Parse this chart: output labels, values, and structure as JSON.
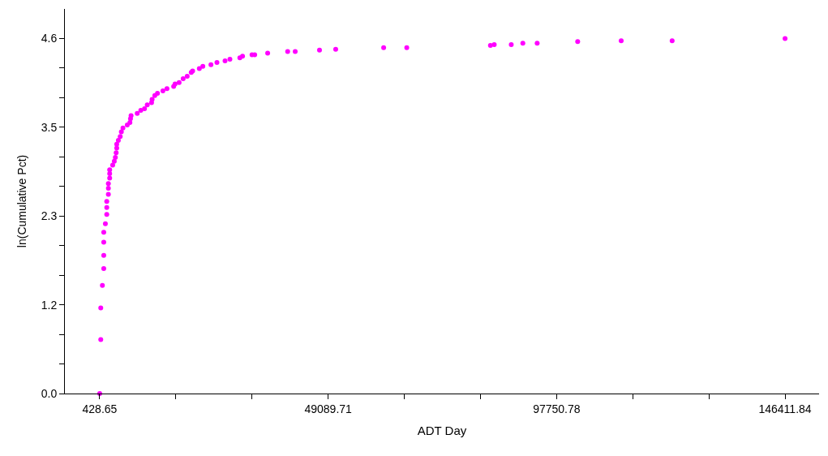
{
  "chart_data": {
    "type": "scatter",
    "xlabel": "ADT Day",
    "ylabel": "ln(Cumulative Pct)",
    "x": [
      428.65,
      653,
      653,
      998,
      1291,
      1291,
      1291,
      1291,
      1636,
      1930,
      1930,
      1930,
      2275,
      2275,
      2275,
      2551,
      2551,
      2551,
      3190,
      3535,
      3759,
      3932,
      4052,
      4052,
      4397,
      4794,
      5036,
      5381,
      6296,
      6865,
      6986,
      7107,
      8418,
      9178,
      9972,
      10558,
      11473,
      11593,
      12163,
      12732,
      13888,
      14751,
      16183,
      16477,
      17340,
      18203,
      19065,
      19928,
      20222,
      21654,
      22396,
      24122,
      25399,
      27125,
      28160,
      30283,
      30852,
      32871,
      33441,
      36202,
      40464,
      42069,
      47246,
      50697,
      60913,
      65831,
      83656,
      84467,
      88091,
      90558,
      93613,
      102240,
      111507,
      122360,
      146411.84
    ],
    "series": [
      {
        "color": "#ff00ff",
        "values": [
          0,
          0.7,
          1.11,
          1.4,
          1.62,
          1.79,
          1.96,
          2.09,
          2.2,
          2.32,
          2.41,
          2.49,
          2.58,
          2.66,
          2.72,
          2.79,
          2.85,
          2.9,
          2.96,
          3.01,
          3.06,
          3.12,
          3.18,
          3.23,
          3.28,
          3.33,
          3.39,
          3.44,
          3.48,
          3.51,
          3.56,
          3.6,
          3.63,
          3.67,
          3.69,
          3.74,
          3.77,
          3.81,
          3.86,
          3.89,
          3.92,
          3.95,
          3.98,
          4.01,
          4.03,
          4.08,
          4.11,
          4.16,
          4.18,
          4.21,
          4.24,
          4.26,
          4.29,
          4.31,
          4.33,
          4.35,
          4.37,
          4.39,
          4.39,
          4.41,
          4.43,
          4.43,
          4.45,
          4.46,
          4.48,
          4.48,
          4.51,
          4.52,
          4.52,
          4.54,
          4.54,
          4.56,
          4.57,
          4.57,
          4.6
        ]
      }
    ],
    "marker": "circle",
    "xlim": [
      -6991,
      153660
    ],
    "xticks": [
      428.65,
      {
        "value": 16649.0,
        "label": null
      },
      {
        "value": 32869.36,
        "label": null
      },
      49089.71,
      {
        "value": 65310.07,
        "label": null
      },
      {
        "value": 81530.42,
        "label": null
      },
      97750.78,
      {
        "value": 113971.13,
        "label": null
      },
      {
        "value": 130191.49,
        "label": null
      },
      146411.84
    ],
    "ylim": [
      0,
      4.983
    ],
    "yticks": [
      {
        "value": 0,
        "label": "0.0"
      },
      {
        "value": 0.3833,
        "label": null
      },
      {
        "value": 0.7667,
        "label": null
      },
      {
        "value": 1.15,
        "label": "1.2"
      },
      {
        "value": 1.5333,
        "label": null
      },
      {
        "value": 1.9167,
        "label": null
      },
      {
        "value": 2.3,
        "label": "2.3"
      },
      {
        "value": 2.6833,
        "label": null
      },
      {
        "value": 3.0667,
        "label": null
      },
      {
        "value": 3.45,
        "label": "3.5"
      },
      {
        "value": 3.8333,
        "label": null
      },
      {
        "value": 4.2167,
        "label": null
      },
      {
        "value": 4.6,
        "label": "4.6"
      }
    ]
  }
}
